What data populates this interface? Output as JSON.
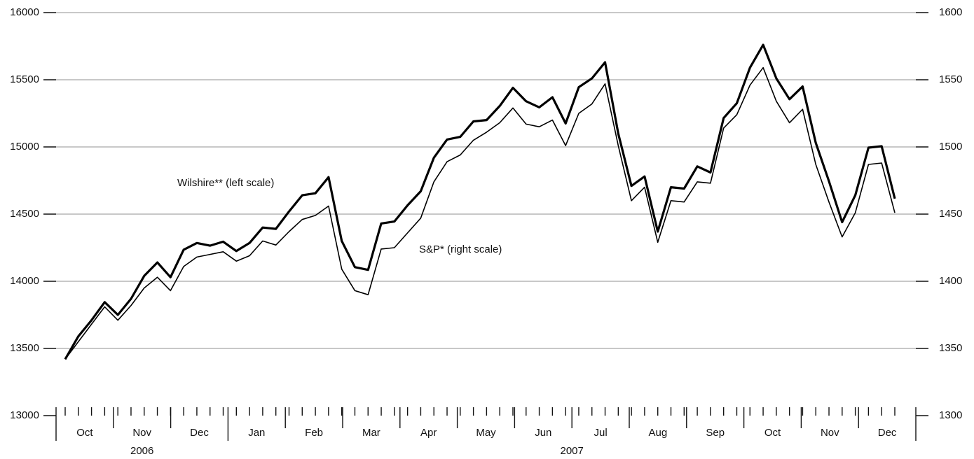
{
  "chart_data": {
    "type": "line",
    "months": [
      "Oct",
      "Nov",
      "Dec",
      "Jan",
      "Feb",
      "Mar",
      "Apr",
      "May",
      "Jun",
      "Jul",
      "Aug",
      "Sep",
      "Oct",
      "Nov",
      "Dec"
    ],
    "years": [
      "2006",
      "2007"
    ],
    "series": [
      {
        "name": "Wilshire** (left scale)",
        "color": "#000000",
        "width": 3.2,
        "axis": "y",
        "values": [
          13420,
          13590,
          13710,
          13845,
          13750,
          13870,
          14040,
          14140,
          14030,
          14235,
          14285,
          14265,
          14295,
          14225,
          14285,
          14400,
          14390,
          14520,
          14640,
          14655,
          14775,
          14300,
          14105,
          14085,
          14430,
          14445,
          14565,
          14670,
          14920,
          15055,
          15075,
          15190,
          15200,
          15305,
          15440,
          15340,
          15295,
          15370,
          15175,
          15445,
          15510,
          15630,
          15100,
          14710,
          14780,
          14370,
          14700,
          14690,
          14855,
          14810,
          15215,
          15325,
          15590,
          15760,
          15510,
          15355,
          15450,
          15030,
          14745,
          14440,
          14640,
          14995,
          15005,
          14615
        ]
      },
      {
        "name": "S&P* (right scale)",
        "color": "#000000",
        "width": 1.6,
        "axis": "y2",
        "values": [
          1342,
          1355,
          1368,
          1381,
          1371,
          1382,
          1395,
          1403,
          1393,
          1411,
          1418,
          1420,
          1422,
          1415,
          1419,
          1430,
          1427,
          1437,
          1446,
          1449,
          1456,
          1409,
          1393,
          1390,
          1424,
          1425,
          1436,
          1447,
          1474,
          1489,
          1494,
          1505,
          1511,
          1518,
          1529,
          1517,
          1515,
          1520,
          1501,
          1525,
          1532,
          1547,
          1501,
          1460,
          1470,
          1429,
          1460,
          1459,
          1474,
          1473,
          1514,
          1524,
          1546,
          1559,
          1534,
          1518,
          1528,
          1487,
          1459,
          1433,
          1451,
          1487,
          1488,
          1451
        ]
      }
    ],
    "ylim": [
      13000,
      16000
    ],
    "yticks": [
      13000,
      13500,
      14000,
      14500,
      15000,
      15500,
      16000
    ],
    "y2lim": [
      1300,
      1600
    ],
    "y2ticks": [
      1300,
      1350,
      1400,
      1450,
      1500,
      1550,
      1600
    ],
    "grid": true
  }
}
